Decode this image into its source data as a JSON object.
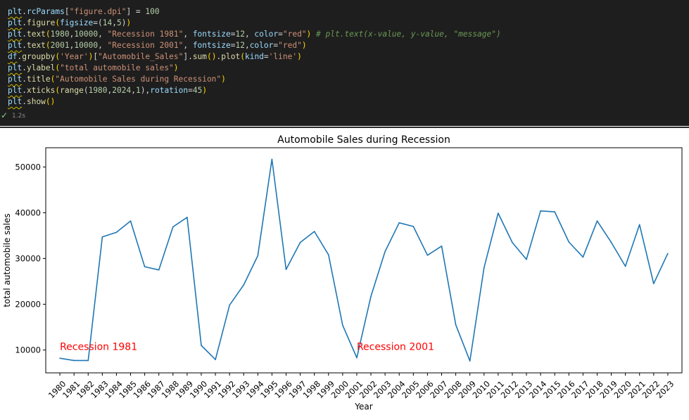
{
  "code": {
    "lines": [
      [
        [
          "plt",
          "var"
        ],
        [
          ".",
          "plain"
        ],
        [
          "rcParams",
          "kw"
        ],
        [
          "[",
          "plain"
        ],
        [
          "\"figure.dpi\"",
          "str"
        ],
        [
          "]",
          "plain"
        ],
        [
          " = ",
          "plain"
        ],
        [
          "100",
          "num"
        ]
      ],
      [
        [
          "plt",
          "var"
        ],
        [
          ".",
          "plain"
        ],
        [
          "figure",
          "fn"
        ],
        [
          "(",
          "paren"
        ],
        [
          "figsize",
          "kw"
        ],
        [
          "=(",
          "plain"
        ],
        [
          "14",
          "num"
        ],
        [
          ",",
          "plain"
        ],
        [
          "5",
          "num"
        ],
        [
          ")",
          "plain"
        ],
        [
          ")",
          "paren"
        ]
      ],
      [
        [
          "plt",
          "var"
        ],
        [
          ".",
          "plain"
        ],
        [
          "text",
          "fn"
        ],
        [
          "(",
          "paren"
        ],
        [
          "1980",
          "num"
        ],
        [
          ",",
          "plain"
        ],
        [
          "10000",
          "num"
        ],
        [
          ", ",
          "plain"
        ],
        [
          "\"Recession 1981\"",
          "str"
        ],
        [
          ", ",
          "plain"
        ],
        [
          "fontsize",
          "kw"
        ],
        [
          "=",
          "plain"
        ],
        [
          "12",
          "num"
        ],
        [
          ", ",
          "plain"
        ],
        [
          "color",
          "kw"
        ],
        [
          "=",
          "plain"
        ],
        [
          "\"red\"",
          "str"
        ],
        [
          ")",
          "paren"
        ],
        [
          " # plt.text(x-value, y-value, \"message\")",
          "cmt"
        ]
      ],
      [
        [
          "plt",
          "var"
        ],
        [
          ".",
          "plain"
        ],
        [
          "text",
          "fn"
        ],
        [
          "(",
          "paren"
        ],
        [
          "2001",
          "num"
        ],
        [
          ",",
          "plain"
        ],
        [
          "10000",
          "num"
        ],
        [
          ", ",
          "plain"
        ],
        [
          "\"Recession 2001\"",
          "str"
        ],
        [
          ", ",
          "plain"
        ],
        [
          "fontsize",
          "kw"
        ],
        [
          "=",
          "plain"
        ],
        [
          "12",
          "num"
        ],
        [
          ",",
          "plain"
        ],
        [
          "color",
          "kw"
        ],
        [
          "=",
          "plain"
        ],
        [
          "\"red\"",
          "str"
        ],
        [
          ")",
          "paren"
        ]
      ],
      [
        [
          "df",
          "var"
        ],
        [
          ".",
          "plain"
        ],
        [
          "groupby",
          "fn"
        ],
        [
          "(",
          "paren"
        ],
        [
          "'Year'",
          "str"
        ],
        [
          ")",
          "paren"
        ],
        [
          "[",
          "plain"
        ],
        [
          "\"Automobile_Sales\"",
          "str"
        ],
        [
          "]",
          "plain"
        ],
        [
          ".",
          "plain"
        ],
        [
          "sum",
          "fn"
        ],
        [
          "()",
          "paren"
        ],
        [
          ".",
          "plain"
        ],
        [
          "plot",
          "fn"
        ],
        [
          "(",
          "paren"
        ],
        [
          "kind",
          "kw"
        ],
        [
          "=",
          "plain"
        ],
        [
          "'line'",
          "str"
        ],
        [
          ")",
          "paren"
        ]
      ],
      [
        [
          "plt",
          "var"
        ],
        [
          ".",
          "plain"
        ],
        [
          "ylabel",
          "fn"
        ],
        [
          "(",
          "paren"
        ],
        [
          "\"total automobile sales\"",
          "str"
        ],
        [
          ")",
          "paren"
        ]
      ],
      [
        [
          "plt",
          "var"
        ],
        [
          ".",
          "plain"
        ],
        [
          "title",
          "fn"
        ],
        [
          "(",
          "paren"
        ],
        [
          "\"Automobile Sales during Recession\"",
          "str"
        ],
        [
          ")",
          "paren"
        ]
      ],
      [
        [
          "plt",
          "var"
        ],
        [
          ".",
          "plain"
        ],
        [
          "xticks",
          "fn"
        ],
        [
          "(",
          "paren"
        ],
        [
          "range",
          "fn"
        ],
        [
          "(",
          "plain"
        ],
        [
          "1980",
          "num"
        ],
        [
          ",",
          "plain"
        ],
        [
          "2024",
          "num"
        ],
        [
          ",",
          "plain"
        ],
        [
          "1",
          "num"
        ],
        [
          ")",
          "plain"
        ],
        [
          ",",
          "plain"
        ],
        [
          "rotation",
          "kw"
        ],
        [
          "=",
          "plain"
        ],
        [
          "45",
          "num"
        ],
        [
          ")",
          "paren"
        ]
      ],
      [
        [
          "plt",
          "var"
        ],
        [
          ".",
          "plain"
        ],
        [
          "show",
          "fn"
        ],
        [
          "()",
          "paren"
        ]
      ]
    ]
  },
  "status": {
    "check": "✓",
    "time": "1.2s"
  },
  "chart_data": {
    "type": "line",
    "title": "Automobile Sales during Recession",
    "xlabel": "Year",
    "ylabel": "total automobile sales",
    "x": [
      1980,
      1981,
      1982,
      1983,
      1984,
      1985,
      1986,
      1987,
      1988,
      1989,
      1990,
      1991,
      1992,
      1993,
      1994,
      1995,
      1996,
      1997,
      1998,
      1999,
      2000,
      2001,
      2002,
      2003,
      2004,
      2005,
      2006,
      2007,
      2008,
      2009,
      2010,
      2011,
      2012,
      2013,
      2014,
      2015,
      2016,
      2017,
      2018,
      2019,
      2020,
      2021,
      2022,
      2023
    ],
    "series": [
      {
        "values": [
          8200,
          7700,
          7700,
          34700,
          35700,
          38200,
          28200,
          27500,
          36900,
          39000,
          11000,
          7900,
          19800,
          24200,
          30600,
          51700,
          27600,
          33500,
          35900,
          30800,
          15400,
          8300,
          21700,
          31500,
          37800,
          37000,
          30700,
          32700,
          15500,
          7600,
          28000,
          39900,
          33500,
          29800,
          40400,
          40200,
          33600,
          30300,
          38200,
          33500,
          28300,
          37400,
          24500,
          31100
        ],
        "color": "#1f77b4"
      }
    ],
    "xlim": [
      1979,
      2024
    ],
    "ylim": [
      5000,
      54200
    ],
    "yticks": [
      10000,
      20000,
      30000,
      40000,
      50000
    ],
    "annotations": [
      {
        "x": 1980,
        "y": 10000,
        "text": "Recession 1981",
        "color": "red"
      },
      {
        "x": 2001,
        "y": 10000,
        "text": "Recession 2001",
        "color": "red"
      }
    ],
    "grid": false,
    "legend": "none"
  }
}
